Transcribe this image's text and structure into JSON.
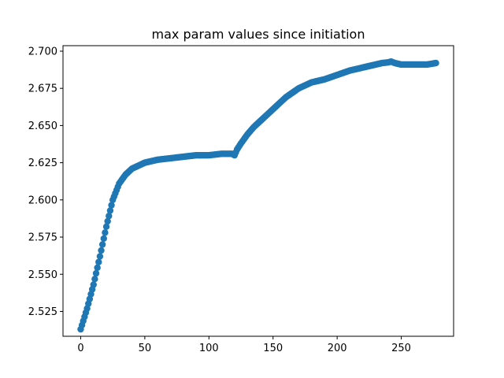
{
  "chart_data": {
    "type": "scatter",
    "title": "max param values since initiation",
    "xlabel": "",
    "ylabel": "",
    "xlim": [
      -13.8,
      290.8
    ],
    "ylim": [
      2.5083,
      2.7037
    ],
    "xticks": [
      0,
      50,
      100,
      150,
      200,
      250
    ],
    "yticks": [
      2.525,
      2.55,
      2.575,
      2.6,
      2.625,
      2.65,
      2.675,
      2.7
    ],
    "xtick_labels": [
      "0",
      "50",
      "100",
      "150",
      "200",
      "250"
    ],
    "ytick_labels": [
      "2.525",
      "2.550",
      "2.575",
      "2.600",
      "2.625",
      "2.650",
      "2.675",
      "2.700"
    ],
    "grid": false,
    "marker_color": "#1f77b4",
    "key_points": [
      [
        0,
        2.513
      ],
      [
        5,
        2.527
      ],
      [
        10,
        2.543
      ],
      [
        15,
        2.562
      ],
      [
        20,
        2.582
      ],
      [
        25,
        2.6
      ],
      [
        30,
        2.611
      ],
      [
        35,
        2.617
      ],
      [
        40,
        2.621
      ],
      [
        45,
        2.623
      ],
      [
        50,
        2.625
      ],
      [
        60,
        2.627
      ],
      [
        70,
        2.628
      ],
      [
        80,
        2.629
      ],
      [
        90,
        2.63
      ],
      [
        100,
        2.63
      ],
      [
        110,
        2.631
      ],
      [
        118,
        2.631
      ],
      [
        120,
        2.63
      ],
      [
        122,
        2.634
      ],
      [
        125,
        2.638
      ],
      [
        130,
        2.644
      ],
      [
        135,
        2.649
      ],
      [
        140,
        2.653
      ],
      [
        145,
        2.657
      ],
      [
        150,
        2.661
      ],
      [
        155,
        2.665
      ],
      [
        160,
        2.669
      ],
      [
        165,
        2.672
      ],
      [
        170,
        2.675
      ],
      [
        175,
        2.677
      ],
      [
        180,
        2.679
      ],
      [
        190,
        2.681
      ],
      [
        200,
        2.684
      ],
      [
        210,
        2.687
      ],
      [
        220,
        2.689
      ],
      [
        230,
        2.691
      ],
      [
        235,
        2.692
      ],
      [
        240,
        2.6925
      ],
      [
        242,
        2.693
      ],
      [
        245,
        2.692
      ],
      [
        250,
        2.691
      ],
      [
        260,
        2.691
      ],
      [
        270,
        2.691
      ],
      [
        277,
        2.692
      ]
    ],
    "n_points": 278
  }
}
